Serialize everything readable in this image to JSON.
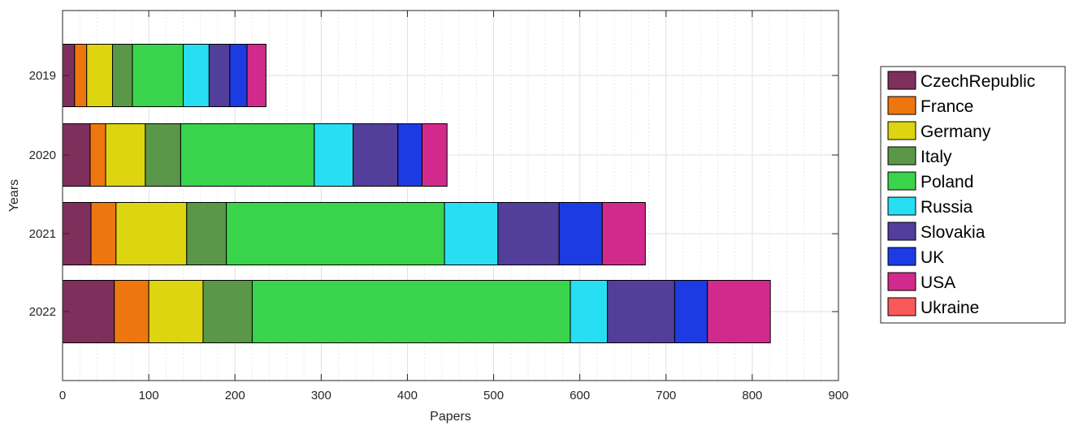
{
  "chart_data": {
    "type": "bar",
    "orientation": "horizontal",
    "stacked": true,
    "title": "",
    "xlabel": "Papers",
    "ylabel": "Years",
    "xlim": [
      0,
      900
    ],
    "xticks": [
      "0",
      "100",
      "200",
      "300",
      "400",
      "500",
      "600",
      "700",
      "800",
      "900"
    ],
    "categories": [
      "2019",
      "2020",
      "2021",
      "2022"
    ],
    "grid": true,
    "legend_position": "right",
    "series": [
      {
        "name": "CzechRepublic",
        "color": "#7e2f5c",
        "values": [
          14,
          32,
          33,
          60
        ]
      },
      {
        "name": "France",
        "color": "#ee760f",
        "values": [
          14,
          18,
          29,
          40
        ]
      },
      {
        "name": "Germany",
        "color": "#dcd50f",
        "values": [
          30,
          46,
          82,
          63
        ]
      },
      {
        "name": "Italy",
        "color": "#5a9748",
        "values": [
          23,
          41,
          46,
          57
        ]
      },
      {
        "name": "Poland",
        "color": "#3ad44c",
        "values": [
          59,
          155,
          253,
          369
        ]
      },
      {
        "name": "Russia",
        "color": "#28def3",
        "values": [
          30,
          45,
          62,
          43
        ]
      },
      {
        "name": "Slovakia",
        "color": "#523e9b",
        "values": [
          24,
          52,
          71,
          78
        ]
      },
      {
        "name": "UK",
        "color": "#1c3be3",
        "values": [
          20,
          28,
          50,
          38
        ]
      },
      {
        "name": "USA",
        "color": "#d22a8c",
        "values": [
          22,
          29,
          50,
          73
        ]
      },
      {
        "name": "Ukraine",
        "color": "#f85a5a",
        "values": [
          0,
          0,
          0,
          0
        ]
      }
    ]
  }
}
